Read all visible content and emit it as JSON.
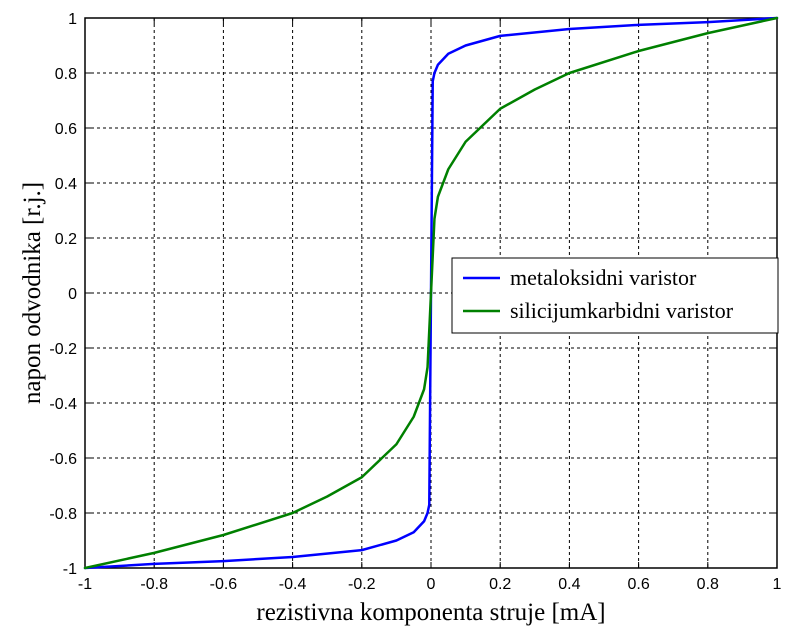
{
  "chart_data": {
    "type": "line",
    "xlabel": "rezistivna komponenta struje [mA]",
    "ylabel": "napon odvodnika [r.j.]",
    "xlim": [
      -1,
      1
    ],
    "ylim": [
      -1,
      1
    ],
    "xticks": [
      "-1",
      "-0.8",
      "-0.6",
      "-0.4",
      "-0.2",
      "0",
      "0.2",
      "0.4",
      "0.6",
      "0.8",
      "1"
    ],
    "yticks": [
      "1",
      "0.8",
      "0.6",
      "0.4",
      "0.2",
      "0",
      "-0.2",
      "-0.4",
      "-0.6",
      "-0.8",
      "-1"
    ],
    "grid": true,
    "legend_position": "center-right",
    "series": [
      {
        "name": "metaloksidni varistor",
        "color": "#0000ff",
        "x": [
          -1,
          -0.8,
          -0.6,
          -0.4,
          -0.2,
          -0.1,
          -0.05,
          -0.02,
          -0.01,
          -0.005,
          0,
          0.005,
          0.01,
          0.02,
          0.05,
          0.1,
          0.2,
          0.4,
          0.6,
          0.8,
          1
        ],
        "y": [
          -1,
          -0.985,
          -0.975,
          -0.96,
          -0.935,
          -0.9,
          -0.87,
          -0.83,
          -0.8,
          -0.77,
          0,
          0.77,
          0.8,
          0.83,
          0.87,
          0.9,
          0.935,
          0.96,
          0.975,
          0.985,
          1
        ]
      },
      {
        "name": "silicijumkarbidni varistor",
        "color": "#008000",
        "x": [
          -1,
          -0.8,
          -0.6,
          -0.4,
          -0.3,
          -0.2,
          -0.1,
          -0.05,
          -0.02,
          -0.01,
          0,
          0.01,
          0.02,
          0.05,
          0.1,
          0.2,
          0.3,
          0.4,
          0.6,
          0.8,
          1
        ],
        "y": [
          -1,
          -0.945,
          -0.88,
          -0.8,
          -0.74,
          -0.67,
          -0.55,
          -0.45,
          -0.35,
          -0.27,
          0,
          0.27,
          0.35,
          0.45,
          0.55,
          0.67,
          0.74,
          0.8,
          0.88,
          0.945,
          1
        ]
      }
    ]
  }
}
